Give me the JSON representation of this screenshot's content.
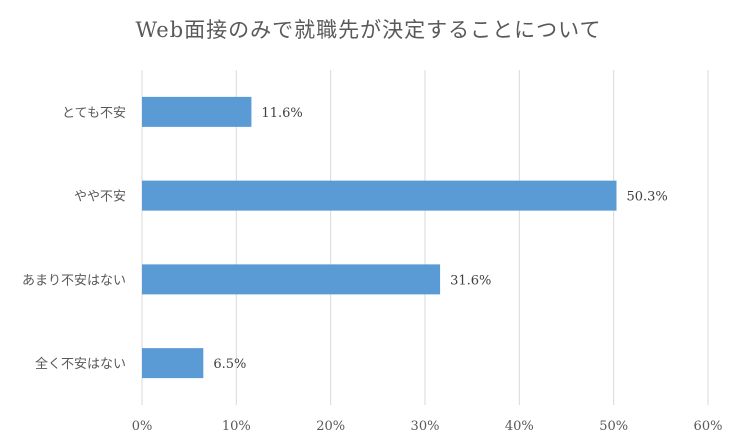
{
  "chart_data": {
    "type": "bar",
    "orientation": "horizontal",
    "title": "Web面接のみで就職先が決定することについて",
    "categories": [
      "とても不安",
      "やや不安",
      "あまり不安はない",
      "全く不安はない"
    ],
    "values": [
      11.6,
      50.3,
      31.6,
      6.5
    ],
    "data_labels": [
      "11.6%",
      "50.3%",
      "31.6%",
      "6.5%"
    ],
    "xlim": [
      0,
      60
    ],
    "x_ticks": [
      0,
      10,
      20,
      30,
      40,
      50,
      60
    ],
    "x_tick_labels": [
      "0%",
      "10%",
      "20%",
      "30%",
      "40%",
      "50%",
      "60%"
    ],
    "grid": "vertical",
    "legend": "none",
    "bar_color": "#5B9BD5",
    "grid_color": "#D9D9D9"
  }
}
